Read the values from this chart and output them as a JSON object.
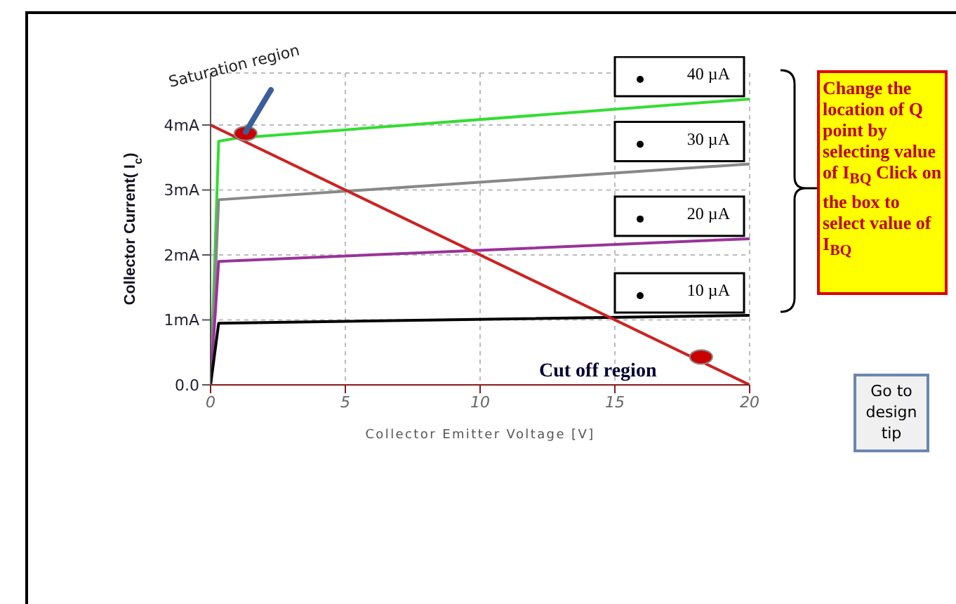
{
  "chart_data": {
    "type": "line",
    "xlabel": "Collector Emitter Voltage [V]",
    "ylabel": "Collector Current( I$_{c}$)",
    "xlim": [
      0,
      20
    ],
    "xticks": [
      0,
      5,
      10,
      15,
      20
    ],
    "ylim": [
      0,
      4.8
    ],
    "yticks": [
      {
        "value": 0,
        "label": "0.0"
      },
      {
        "value": 1,
        "label": "1mA"
      },
      {
        "value": 2,
        "label": "2mA"
      },
      {
        "value": 3,
        "label": "3mA"
      },
      {
        "value": 4,
        "label": "4mA"
      }
    ],
    "grid": true,
    "line_style": "solid",
    "series": [
      {
        "name": "40 µA",
        "color": "#33dd33",
        "x": [
          0,
          0.3,
          1,
          20
        ],
        "values": [
          0,
          3.75,
          3.8,
          4.4
        ]
      },
      {
        "name": "30 µA",
        "color": "#888888",
        "x": [
          0,
          0.3,
          20
        ],
        "values": [
          0,
          2.85,
          3.4
        ]
      },
      {
        "name": "20 µA",
        "color": "#993399",
        "x": [
          0,
          0.3,
          20
        ],
        "values": [
          0,
          1.9,
          2.25
        ]
      },
      {
        "name": "10 µA",
        "color": "#000000",
        "x": [
          0,
          0.3,
          20
        ],
        "values": [
          0,
          0.95,
          1.07
        ]
      },
      {
        "color": "#cc2222",
        "x": [
          0,
          20
        ],
        "values": [
          4,
          0
        ]
      },
      {
        "type": "scatter",
        "color": "#cc0000",
        "x": [
          1.3,
          18.2
        ],
        "values": [
          3.87,
          0.43
        ]
      }
    ],
    "annotations": [
      "Saturation region",
      "Cut off region",
      "Change the location of Q point by selecting value of I$_{BQ}$ Click on the box to select value of I$_{BQ}$",
      "Go to design tip"
    ]
  }
}
